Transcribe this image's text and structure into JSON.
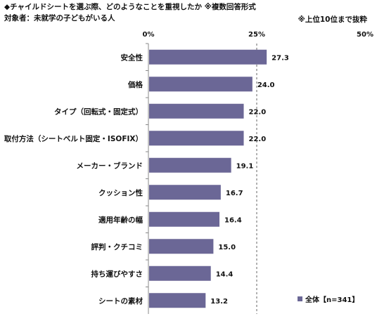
{
  "header": {
    "title": "◆チャイルドシートを選ぶ際、どのようなことを重視したか ※複数回答形式",
    "subtitle": "対象者：未就学の子どもがいる人",
    "note": "※上位10位まで抜粋"
  },
  "legend": {
    "label": "全体【n=341】"
  },
  "colors": {
    "bar": "#6B6796",
    "axis": "#888888",
    "grid": "#666666"
  },
  "chart_data": {
    "type": "bar",
    "orientation": "horizontal",
    "categories": [
      "安全性",
      "価格",
      "タイプ（回転式・固定式）",
      "取付方法（シートベルト固定・ISOFIX）",
      "メーカー・ブランド",
      "クッション性",
      "適用年齢の幅",
      "評判・クチコミ",
      "持ち運びやすさ",
      "シートの素材"
    ],
    "series": [
      {
        "name": "全体【n=341】",
        "values": [
          27.3,
          24.0,
          22.0,
          22.0,
          19.1,
          16.7,
          16.4,
          15.0,
          14.4,
          13.2
        ]
      }
    ],
    "value_labels": [
      "27.3",
      "24.0",
      "22.0",
      "22.0",
      "19.1",
      "16.7",
      "16.4",
      "15.0",
      "14.4",
      "13.2"
    ],
    "xlim": [
      0,
      50
    ],
    "ticks": [
      0,
      25,
      50
    ],
    "tick_labels": [
      "0%",
      "25%",
      "50%"
    ],
    "grid": "dashed line at 25%",
    "legend_position": "bottom-right"
  }
}
